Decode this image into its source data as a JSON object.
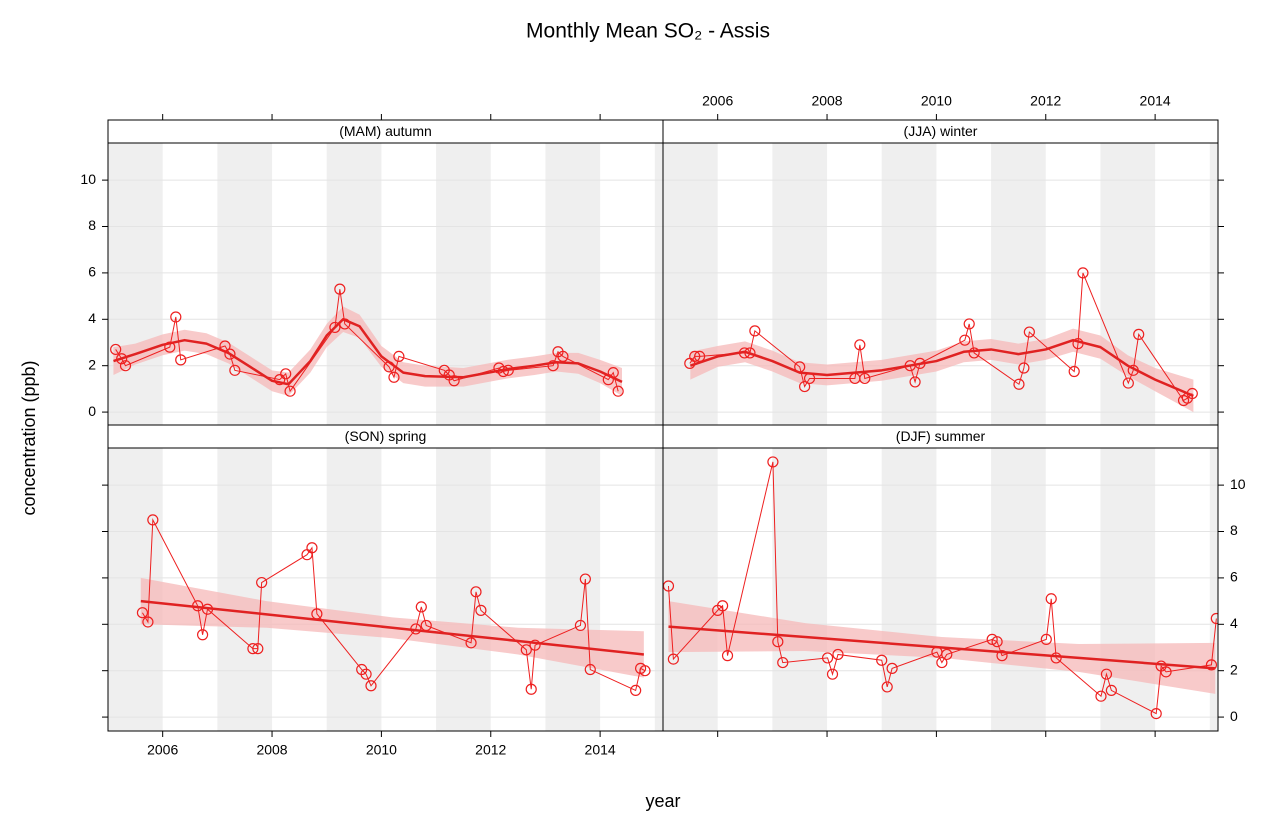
{
  "chart_data": {
    "type": "line",
    "title": "Monthly Mean SO₂ - Assis",
    "xlabel": "year",
    "ylabel": "concentration (ppb)",
    "xlim": [
      2005.0,
      2015.15
    ],
    "ylim": [
      -0.6,
      11.6
    ],
    "xticks": [
      2006,
      2008,
      2010,
      2012,
      2014
    ],
    "yticks": [
      0,
      2,
      4,
      6,
      8,
      10
    ],
    "grid": true,
    "point_color": "#ee2020",
    "fit_color": "#e02222",
    "band_color": "#f6b8b8",
    "panels": [
      {
        "strip": "(MAM) autumn",
        "points": {
          "x": [
            2005.14,
            2005.25,
            2005.32,
            2006.13,
            2006.24,
            2006.33,
            2007.14,
            2007.23,
            2007.32,
            2008.14,
            2008.25,
            2008.33,
            2009.15,
            2009.24,
            2009.33,
            2010.14,
            2010.23,
            2010.32,
            2011.15,
            2011.24,
            2011.33,
            2012.15,
            2012.23,
            2012.32,
            2013.14,
            2013.23,
            2013.32,
            2014.15,
            2014.24,
            2014.33
          ],
          "y": [
            2.7,
            2.3,
            2.0,
            2.8,
            4.1,
            2.25,
            2.85,
            2.5,
            1.8,
            1.4,
            1.65,
            0.9,
            3.65,
            5.3,
            3.8,
            1.95,
            1.5,
            2.4,
            1.8,
            1.6,
            1.35,
            1.9,
            1.75,
            1.8,
            2.0,
            2.6,
            2.4,
            1.4,
            1.7,
            0.9
          ]
        },
        "fit": {
          "x": [
            2005.1,
            2005.5,
            2006.0,
            2006.4,
            2006.8,
            2007.2,
            2007.6,
            2008.0,
            2008.3,
            2008.7,
            2009.0,
            2009.3,
            2009.6,
            2010.0,
            2010.4,
            2010.8,
            2011.5,
            2012.3,
            2012.8,
            2013.2,
            2013.6,
            2014.0,
            2014.4
          ],
          "y": [
            2.2,
            2.5,
            2.9,
            3.1,
            2.95,
            2.55,
            1.95,
            1.35,
            1.2,
            2.2,
            3.3,
            4.0,
            3.7,
            2.4,
            1.7,
            1.55,
            1.5,
            1.85,
            2.0,
            2.15,
            2.1,
            1.75,
            1.3
          ],
          "lower": [
            1.6,
            2.05,
            2.45,
            2.65,
            2.5,
            2.1,
            1.5,
            0.9,
            0.7,
            1.7,
            2.8,
            3.45,
            3.2,
            1.95,
            1.25,
            1.1,
            1.1,
            1.45,
            1.6,
            1.75,
            1.65,
            1.25,
            0.7
          ],
          "upper": [
            2.8,
            2.95,
            3.35,
            3.55,
            3.4,
            3.0,
            2.4,
            1.8,
            1.7,
            2.7,
            3.8,
            4.55,
            4.2,
            2.85,
            2.15,
            2.0,
            1.9,
            2.25,
            2.4,
            2.55,
            2.55,
            2.25,
            1.9
          ]
        }
      },
      {
        "strip": "(JJA) winter",
        "points": {
          "x": [
            2005.49,
            2005.58,
            2005.67,
            2006.49,
            2006.59,
            2006.68,
            2007.5,
            2007.59,
            2007.68,
            2008.51,
            2008.6,
            2008.69,
            2009.52,
            2009.61,
            2009.7,
            2010.52,
            2010.6,
            2010.69,
            2011.51,
            2011.6,
            2011.7,
            2012.52,
            2012.59,
            2012.68,
            2013.51,
            2013.6,
            2013.7,
            2014.52,
            2014.59,
            2014.68
          ],
          "y": [
            2.1,
            2.4,
            2.4,
            2.55,
            2.55,
            3.5,
            1.95,
            1.1,
            1.45,
            1.45,
            2.9,
            1.45,
            2.0,
            1.3,
            2.1,
            3.1,
            3.8,
            2.55,
            1.2,
            1.9,
            3.45,
            1.75,
            2.95,
            6.0,
            1.25,
            1.8,
            3.35,
            0.5,
            0.6,
            0.8
          ]
        },
        "fit": {
          "x": [
            2005.5,
            2006.0,
            2006.5,
            2007.0,
            2007.5,
            2008.0,
            2009.0,
            2010.0,
            2010.5,
            2011.0,
            2011.5,
            2012.0,
            2012.5,
            2013.0,
            2013.5,
            2014.0,
            2014.7
          ],
          "y": [
            2.0,
            2.4,
            2.6,
            2.2,
            1.7,
            1.6,
            1.8,
            2.2,
            2.6,
            2.7,
            2.5,
            2.7,
            3.1,
            2.8,
            2.0,
            1.4,
            0.7
          ],
          "lower": [
            1.4,
            1.95,
            2.15,
            1.75,
            1.25,
            1.15,
            1.35,
            1.75,
            2.15,
            2.25,
            2.05,
            2.25,
            2.6,
            2.3,
            1.55,
            0.9,
            0.0
          ],
          "upper": [
            2.6,
            2.85,
            3.05,
            2.65,
            2.15,
            2.05,
            2.25,
            2.65,
            3.05,
            3.15,
            2.95,
            3.15,
            3.6,
            3.3,
            2.45,
            1.9,
            1.4
          ]
        }
      },
      {
        "strip": "(SON) spring",
        "points": {
          "x": [
            2005.63,
            2005.73,
            2005.82,
            2006.64,
            2006.73,
            2006.82,
            2007.65,
            2007.74,
            2007.81,
            2008.64,
            2008.73,
            2008.82,
            2009.64,
            2009.72,
            2009.81,
            2010.63,
            2010.73,
            2010.82,
            2011.64,
            2011.73,
            2011.82,
            2012.65,
            2012.74,
            2012.81,
            2013.64,
            2013.73,
            2013.82,
            2014.65,
            2014.74,
            2014.82
          ],
          "y": [
            4.5,
            4.1,
            8.5,
            4.8,
            3.55,
            4.65,
            2.95,
            2.95,
            5.8,
            7.0,
            7.3,
            4.45,
            2.05,
            1.85,
            1.35,
            3.8,
            4.75,
            3.95,
            3.2,
            5.4,
            4.6,
            2.9,
            1.2,
            3.1,
            3.95,
            5.95,
            2.05,
            1.15,
            2.1,
            2.0
          ]
        },
        "fit": {
          "x": [
            2005.6,
            2007.9,
            2010.2,
            2012.5,
            2014.8
          ],
          "y": [
            5.0,
            4.43,
            3.85,
            3.28,
            2.7
          ],
          "lower": [
            4.0,
            3.85,
            3.4,
            2.7,
            1.7
          ],
          "upper": [
            6.0,
            5.0,
            4.3,
            3.85,
            3.7
          ]
        }
      },
      {
        "strip": "(DJF) summer",
        "points": {
          "x": [
            2005.1,
            2005.19,
            2006.0,
            2006.09,
            2006.18,
            2007.01,
            2007.1,
            2007.19,
            2008.01,
            2008.1,
            2008.2,
            2009.0,
            2009.1,
            2009.19,
            2010.01,
            2010.1,
            2010.19,
            2011.02,
            2011.11,
            2011.2,
            2012.01,
            2012.1,
            2012.19,
            2013.01,
            2013.11,
            2013.2,
            2014.02,
            2014.11,
            2014.2,
            2015.03,
            2015.12
          ],
          "y": [
            5.65,
            2.5,
            4.6,
            4.8,
            2.65,
            11.0,
            3.25,
            2.35,
            2.55,
            1.85,
            2.7,
            2.45,
            1.3,
            2.1,
            2.8,
            2.35,
            2.7,
            3.35,
            3.25,
            2.65,
            3.35,
            5.1,
            2.55,
            0.9,
            1.85,
            1.15,
            0.15,
            2.2,
            1.95,
            2.25,
            4.25
          ]
        },
        "fit": {
          "x": [
            2005.1,
            2007.6,
            2010.1,
            2012.6,
            2015.1
          ],
          "y": [
            3.9,
            3.45,
            3.0,
            2.55,
            2.1
          ],
          "lower": [
            2.8,
            2.85,
            2.55,
            1.95,
            1.0
          ],
          "upper": [
            5.0,
            4.05,
            3.45,
            3.15,
            3.2
          ]
        }
      }
    ]
  }
}
